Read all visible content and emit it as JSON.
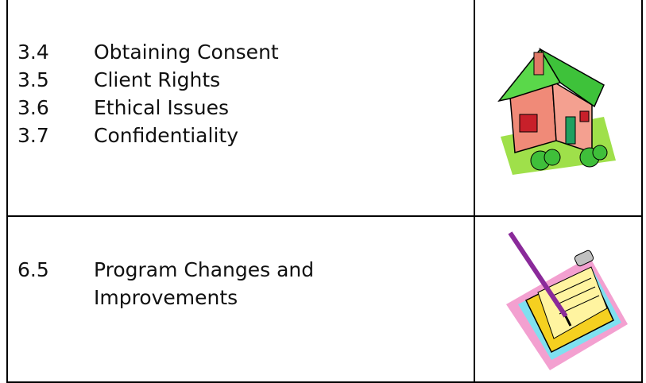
{
  "table": {
    "rows": [
      {
        "items": [
          {
            "number": "3.4",
            "title": "Obtaining Consent"
          },
          {
            "number": "3.5",
            "title": "Client Rights"
          },
          {
            "number": "3.6",
            "title": "Ethical Issues"
          },
          {
            "number": "3.7",
            "title": "Confidentiality"
          }
        ]
      },
      {
        "items": [
          {
            "number": "6.5",
            "title": "Program Changes and Improvements"
          }
        ]
      }
    ]
  }
}
